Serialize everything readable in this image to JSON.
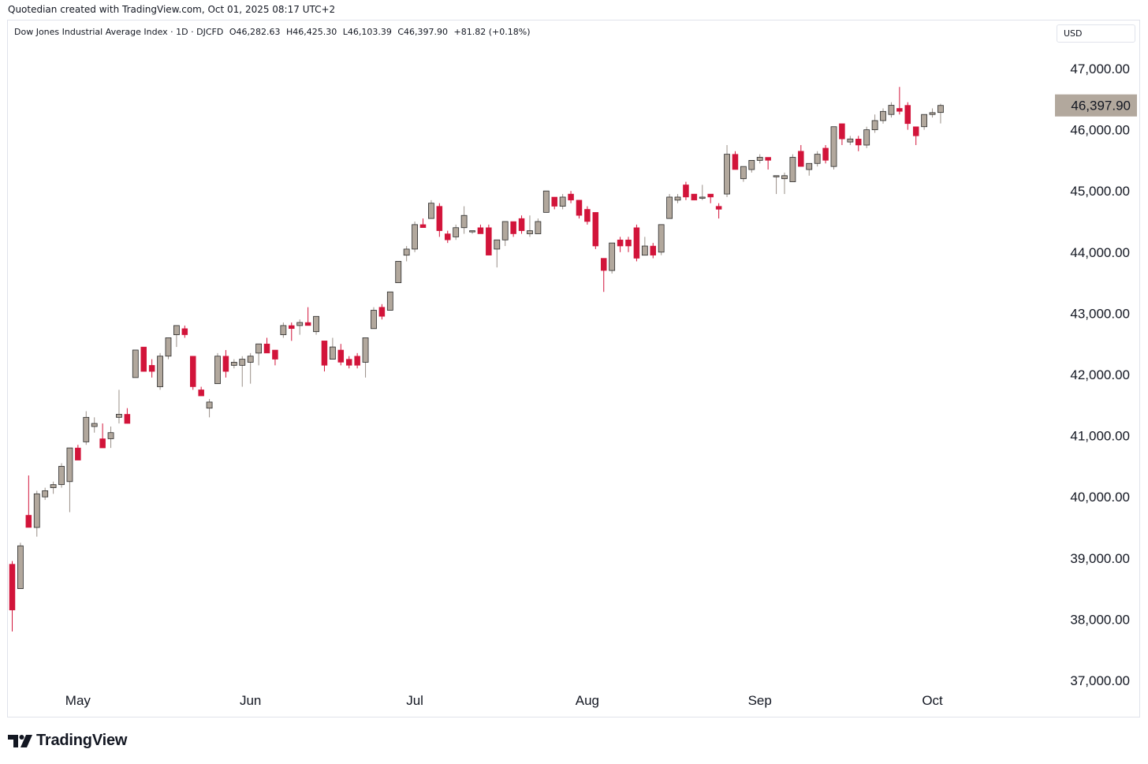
{
  "header": {
    "caption": "Quotedian created with TradingView.com, Oct 01, 2025 08:17 UTC+2"
  },
  "legend": {
    "symbol": "Dow Jones Industrial Average Index · 1D · DJCFD",
    "open": "O46,282.63",
    "high": "H46,425.30",
    "low": "L46,103.39",
    "close": "C46,397.90",
    "change": "+81.82 (+0.18%)"
  },
  "currency": "USD",
  "brand": {
    "name": "TradingView",
    "logo_icon": "tradingview-logo-icon"
  },
  "colors": {
    "up": "#b2a89d",
    "down": "#d2143a",
    "wick_up": "#9a9088",
    "last_price_bg": "#b2a89d",
    "axis_text": "#131722"
  },
  "chart_data": {
    "type": "candlestick",
    "title": "Dow Jones Industrial Average Index",
    "ylim": [
      37000,
      47000
    ],
    "y_ticks": [
      {
        "value": 47000,
        "label": "47,000.00"
      },
      {
        "value": 46000,
        "label": "46,000.00"
      },
      {
        "value": 45000,
        "label": "45,000.00"
      },
      {
        "value": 44000,
        "label": "44,000.00"
      },
      {
        "value": 43000,
        "label": "43,000.00"
      },
      {
        "value": 42000,
        "label": "42,000.00"
      },
      {
        "value": 41000,
        "label": "41,000.00"
      },
      {
        "value": 40000,
        "label": "40,000.00"
      },
      {
        "value": 39000,
        "label": "39,000.00"
      },
      {
        "value": 38000,
        "label": "38,000.00"
      },
      {
        "value": 37000,
        "label": "37,000.00"
      }
    ],
    "x_ticks": [
      {
        "index": 8,
        "label": "May"
      },
      {
        "index": 29,
        "label": "Jun"
      },
      {
        "index": 49,
        "label": "Jul"
      },
      {
        "index": 70,
        "label": "Aug"
      },
      {
        "index": 91,
        "label": "Sep"
      },
      {
        "index": 112,
        "label": "Oct"
      }
    ],
    "last_price": {
      "value": 46397.9,
      "label": "46,397.90"
    },
    "candles": [
      {
        "o": 38900,
        "h": 38950,
        "l": 37800,
        "c": 38150
      },
      {
        "o": 38500,
        "h": 39250,
        "l": 38500,
        "c": 39200
      },
      {
        "o": 39700,
        "h": 40350,
        "l": 39500,
        "c": 39500
      },
      {
        "o": 39500,
        "h": 40100,
        "l": 39350,
        "c": 40050
      },
      {
        "o": 40000,
        "h": 40150,
        "l": 39950,
        "c": 40100
      },
      {
        "o": 40150,
        "h": 40250,
        "l": 40050,
        "c": 40200
      },
      {
        "o": 40200,
        "h": 40550,
        "l": 40150,
        "c": 40500
      },
      {
        "o": 40250,
        "h": 40800,
        "l": 39750,
        "c": 40800
      },
      {
        "o": 40800,
        "h": 40850,
        "l": 40700,
        "c": 40600
      },
      {
        "o": 40900,
        "h": 41400,
        "l": 40850,
        "c": 41300
      },
      {
        "o": 41150,
        "h": 41300,
        "l": 41050,
        "c": 41200
      },
      {
        "o": 40950,
        "h": 41200,
        "l": 40800,
        "c": 40800
      },
      {
        "o": 40950,
        "h": 41150,
        "l": 40800,
        "c": 41050
      },
      {
        "o": 41300,
        "h": 41750,
        "l": 41200,
        "c": 41350
      },
      {
        "o": 41350,
        "h": 41450,
        "l": 41200,
        "c": 41200
      },
      {
        "o": 41950,
        "h": 42350,
        "l": 41950,
        "c": 42400
      },
      {
        "o": 42450,
        "h": 42450,
        "l": 42050,
        "c": 42050
      },
      {
        "o": 42150,
        "h": 42250,
        "l": 41950,
        "c": 42050
      },
      {
        "o": 41800,
        "h": 42350,
        "l": 41750,
        "c": 42300
      },
      {
        "o": 42300,
        "h": 42600,
        "l": 42250,
        "c": 42600
      },
      {
        "o": 42650,
        "h": 42800,
        "l": 42450,
        "c": 42800
      },
      {
        "o": 42750,
        "h": 42800,
        "l": 42600,
        "c": 42650
      },
      {
        "o": 42300,
        "h": 42300,
        "l": 41750,
        "c": 41800
      },
      {
        "o": 41750,
        "h": 41800,
        "l": 41650,
        "c": 41650
      },
      {
        "o": 41450,
        "h": 41600,
        "l": 41300,
        "c": 41550
      },
      {
        "o": 41850,
        "h": 42350,
        "l": 41850,
        "c": 42300
      },
      {
        "o": 42300,
        "h": 42400,
        "l": 41950,
        "c": 42050
      },
      {
        "o": 42150,
        "h": 42250,
        "l": 42100,
        "c": 42200
      },
      {
        "o": 42150,
        "h": 42300,
        "l": 41800,
        "c": 42250
      },
      {
        "o": 42200,
        "h": 42350,
        "l": 41850,
        "c": 42300
      },
      {
        "o": 42350,
        "h": 42500,
        "l": 42150,
        "c": 42500
      },
      {
        "o": 42500,
        "h": 42600,
        "l": 42350,
        "c": 42350
      },
      {
        "o": 42400,
        "h": 42400,
        "l": 42150,
        "c": 42250
      },
      {
        "o": 42650,
        "h": 42850,
        "l": 42600,
        "c": 42800
      },
      {
        "o": 42800,
        "h": 42850,
        "l": 42550,
        "c": 42750
      },
      {
        "o": 42800,
        "h": 42900,
        "l": 42650,
        "c": 42850
      },
      {
        "o": 42850,
        "h": 43100,
        "l": 42800,
        "c": 42800
      },
      {
        "o": 42700,
        "h": 42950,
        "l": 42650,
        "c": 42950
      },
      {
        "o": 42550,
        "h": 42550,
        "l": 42050,
        "c": 42150
      },
      {
        "o": 42250,
        "h": 42600,
        "l": 42250,
        "c": 42450
      },
      {
        "o": 42400,
        "h": 42500,
        "l": 42150,
        "c": 42200
      },
      {
        "o": 42250,
        "h": 42300,
        "l": 42100,
        "c": 42150
      },
      {
        "o": 42300,
        "h": 42350,
        "l": 42100,
        "c": 42150
      },
      {
        "o": 42200,
        "h": 42600,
        "l": 41950,
        "c": 42600
      },
      {
        "o": 42750,
        "h": 43100,
        "l": 42750,
        "c": 43050
      },
      {
        "o": 43100,
        "h": 43150,
        "l": 42900,
        "c": 42950
      },
      {
        "o": 43050,
        "h": 43350,
        "l": 43050,
        "c": 43350
      },
      {
        "o": 43500,
        "h": 43850,
        "l": 43500,
        "c": 43850
      },
      {
        "o": 43950,
        "h": 44100,
        "l": 43850,
        "c": 44050
      },
      {
        "o": 44050,
        "h": 44500,
        "l": 44000,
        "c": 44450
      },
      {
        "o": 44450,
        "h": 44550,
        "l": 44400,
        "c": 44400
      },
      {
        "o": 44550,
        "h": 44850,
        "l": 44550,
        "c": 44800
      },
      {
        "o": 44750,
        "h": 44800,
        "l": 44250,
        "c": 44350
      },
      {
        "o": 44300,
        "h": 44350,
        "l": 44150,
        "c": 44200
      },
      {
        "o": 44250,
        "h": 44450,
        "l": 44200,
        "c": 44400
      },
      {
        "o": 44400,
        "h": 44750,
        "l": 44300,
        "c": 44600
      },
      {
        "o": 44350,
        "h": 44350,
        "l": 44300,
        "c": 44350
      },
      {
        "o": 44400,
        "h": 44450,
        "l": 44350,
        "c": 44300
      },
      {
        "o": 44400,
        "h": 44450,
        "l": 43950,
        "c": 43950
      },
      {
        "o": 44050,
        "h": 44150,
        "l": 43750,
        "c": 44200
      },
      {
        "o": 44200,
        "h": 44500,
        "l": 44100,
        "c": 44500
      },
      {
        "o": 44500,
        "h": 44500,
        "l": 44250,
        "c": 44300
      },
      {
        "o": 44550,
        "h": 44600,
        "l": 44300,
        "c": 44350
      },
      {
        "o": 44300,
        "h": 44600,
        "l": 44250,
        "c": 44350
      },
      {
        "o": 44300,
        "h": 44550,
        "l": 44300,
        "c": 44500
      },
      {
        "o": 44650,
        "h": 45000,
        "l": 44650,
        "c": 45000
      },
      {
        "o": 44900,
        "h": 44900,
        "l": 44700,
        "c": 44750
      },
      {
        "o": 44750,
        "h": 44950,
        "l": 44700,
        "c": 44900
      },
      {
        "o": 44950,
        "h": 45000,
        "l": 44800,
        "c": 44850
      },
      {
        "o": 44850,
        "h": 44850,
        "l": 44550,
        "c": 44600
      },
      {
        "o": 44700,
        "h": 44750,
        "l": 44450,
        "c": 44500
      },
      {
        "o": 44650,
        "h": 44650,
        "l": 44050,
        "c": 44100
      },
      {
        "o": 43900,
        "h": 43900,
        "l": 43350,
        "c": 43700
      },
      {
        "o": 43700,
        "h": 44150,
        "l": 43650,
        "c": 44150
      },
      {
        "o": 44200,
        "h": 44250,
        "l": 44000,
        "c": 44100
      },
      {
        "o": 44200,
        "h": 44250,
        "l": 44000,
        "c": 44100
      },
      {
        "o": 44400,
        "h": 44450,
        "l": 43850,
        "c": 43900
      },
      {
        "o": 43950,
        "h": 44250,
        "l": 43950,
        "c": 44100
      },
      {
        "o": 44100,
        "h": 44150,
        "l": 43900,
        "c": 43950
      },
      {
        "o": 44000,
        "h": 44450,
        "l": 43950,
        "c": 44450
      },
      {
        "o": 44550,
        "h": 44950,
        "l": 44550,
        "c": 44900
      },
      {
        "o": 44850,
        "h": 44950,
        "l": 44800,
        "c": 44900
      },
      {
        "o": 45100,
        "h": 45150,
        "l": 44850,
        "c": 44900
      },
      {
        "o": 44950,
        "h": 44950,
        "l": 44850,
        "c": 44850
      },
      {
        "o": 44900,
        "h": 45100,
        "l": 44850,
        "c": 44900
      },
      {
        "o": 44950,
        "h": 44950,
        "l": 44800,
        "c": 44900
      },
      {
        "o": 44750,
        "h": 44800,
        "l": 44550,
        "c": 44700
      },
      {
        "o": 44950,
        "h": 45750,
        "l": 44900,
        "c": 45600
      },
      {
        "o": 45600,
        "h": 45650,
        "l": 45350,
        "c": 45350
      },
      {
        "o": 45200,
        "h": 45400,
        "l": 45150,
        "c": 45400
      },
      {
        "o": 45350,
        "h": 45500,
        "l": 45300,
        "c": 45500
      },
      {
        "o": 45500,
        "h": 45600,
        "l": 45450,
        "c": 45550
      },
      {
        "o": 45550,
        "h": 45550,
        "l": 45350,
        "c": 45500
      },
      {
        "o": 45250,
        "h": 45250,
        "l": 44950,
        "c": 45250
      },
      {
        "o": 45200,
        "h": 45300,
        "l": 44950,
        "c": 45250
      },
      {
        "o": 45150,
        "h": 45600,
        "l": 45150,
        "c": 45550
      },
      {
        "o": 45650,
        "h": 45750,
        "l": 45400,
        "c": 45400
      },
      {
        "o": 45350,
        "h": 45450,
        "l": 45250,
        "c": 45450
      },
      {
        "o": 45450,
        "h": 45650,
        "l": 45400,
        "c": 45600
      },
      {
        "o": 45700,
        "h": 45750,
        "l": 45450,
        "c": 45500
      },
      {
        "o": 45400,
        "h": 46050,
        "l": 45350,
        "c": 46050
      },
      {
        "o": 46100,
        "h": 46100,
        "l": 45750,
        "c": 45850
      },
      {
        "o": 45800,
        "h": 45900,
        "l": 45750,
        "c": 45850
      },
      {
        "o": 45850,
        "h": 45900,
        "l": 45650,
        "c": 45750
      },
      {
        "o": 45750,
        "h": 46050,
        "l": 45700,
        "c": 46000
      },
      {
        "o": 46000,
        "h": 46250,
        "l": 45950,
        "c": 46150
      },
      {
        "o": 46150,
        "h": 46350,
        "l": 46100,
        "c": 46300
      },
      {
        "o": 46250,
        "h": 46450,
        "l": 46200,
        "c": 46400
      },
      {
        "o": 46350,
        "h": 46700,
        "l": 46250,
        "c": 46300
      },
      {
        "o": 46400,
        "h": 46450,
        "l": 46000,
        "c": 46100
      },
      {
        "o": 46050,
        "h": 46050,
        "l": 45750,
        "c": 45900
      },
      {
        "o": 46050,
        "h": 46250,
        "l": 46000,
        "c": 46250
      },
      {
        "o": 46250,
        "h": 46350,
        "l": 46200,
        "c": 46280
      },
      {
        "o": 46282.63,
        "h": 46425.3,
        "l": 46103.39,
        "c": 46397.9
      }
    ]
  }
}
